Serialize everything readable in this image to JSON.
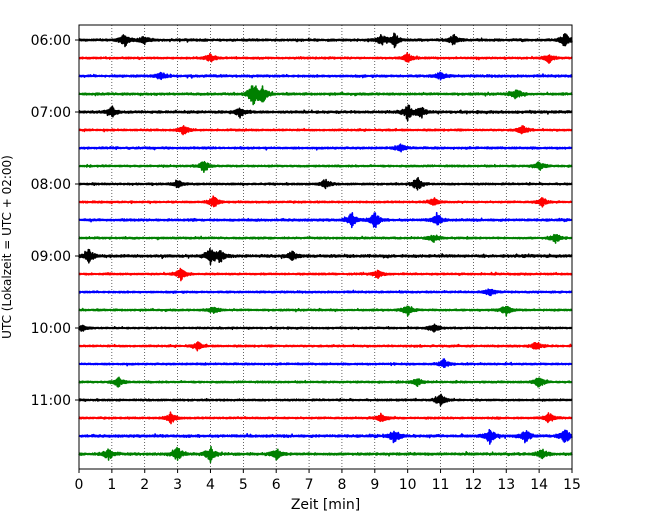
{
  "chart_data": {
    "type": "line",
    "title": "",
    "xlabel": "Zeit  [min]",
    "ylabel": "UTC (Lokalzeit = UTC + 02:00)",
    "xlim": [
      0,
      15
    ],
    "x_ticks": [
      "0",
      "1",
      "2",
      "3",
      "4",
      "5",
      "6",
      "7",
      "8",
      "9",
      "10",
      "11",
      "12",
      "13",
      "14",
      "15"
    ],
    "y_ticks": [
      "06:00",
      "07:00",
      "08:00",
      "09:00",
      "10:00",
      "11:00"
    ],
    "trace_interval_min": 15,
    "start_time": "06:00",
    "grid": "vertical dotted",
    "legend": "none",
    "colors": [
      "#000000",
      "#ff0000",
      "#0000ff",
      "#008000"
    ],
    "series": [
      {
        "start": "06:00",
        "color": "#000000",
        "amplitude": 0.55,
        "events": [
          {
            "t": 1.4,
            "a": 1.2
          },
          {
            "t": 2.0,
            "a": 0.8
          },
          {
            "t": 9.2,
            "a": 1.0
          },
          {
            "t": 9.6,
            "a": 1.3
          },
          {
            "t": 11.4,
            "a": 1.0
          },
          {
            "t": 14.8,
            "a": 1.4
          }
        ]
      },
      {
        "start": "06:15",
        "color": "#ff0000",
        "amplitude": 0.45,
        "events": [
          {
            "t": 4.0,
            "a": 0.8
          },
          {
            "t": 10.0,
            "a": 0.9
          },
          {
            "t": 14.3,
            "a": 0.9
          }
        ]
      },
      {
        "start": "06:30",
        "color": "#0000ff",
        "amplitude": 0.55,
        "events": [
          {
            "t": 2.5,
            "a": 0.7
          },
          {
            "t": 11.0,
            "a": 0.8
          }
        ]
      },
      {
        "start": "06:45",
        "color": "#008000",
        "amplitude": 0.55,
        "events": [
          {
            "t": 5.3,
            "a": 2.2
          },
          {
            "t": 5.6,
            "a": 1.6
          },
          {
            "t": 13.3,
            "a": 1.0
          }
        ]
      },
      {
        "start": "07:00",
        "color": "#000000",
        "amplitude": 0.6,
        "events": [
          {
            "t": 1.0,
            "a": 1.0
          },
          {
            "t": 4.9,
            "a": 1.0
          },
          {
            "t": 10.0,
            "a": 1.4
          },
          {
            "t": 10.4,
            "a": 1.0
          }
        ]
      },
      {
        "start": "07:15",
        "color": "#ff0000",
        "amplitude": 0.45,
        "events": [
          {
            "t": 3.2,
            "a": 1.0
          },
          {
            "t": 13.5,
            "a": 0.9
          }
        ]
      },
      {
        "start": "07:30",
        "color": "#0000ff",
        "amplitude": 0.5,
        "events": [
          {
            "t": 9.8,
            "a": 0.8
          }
        ]
      },
      {
        "start": "07:45",
        "color": "#008000",
        "amplitude": 0.45,
        "events": [
          {
            "t": 3.8,
            "a": 1.1
          },
          {
            "t": 14.0,
            "a": 0.9
          }
        ]
      },
      {
        "start": "08:00",
        "color": "#000000",
        "amplitude": 0.45,
        "events": [
          {
            "t": 3.0,
            "a": 0.8
          },
          {
            "t": 7.5,
            "a": 0.9
          },
          {
            "t": 10.3,
            "a": 1.3
          }
        ]
      },
      {
        "start": "08:15",
        "color": "#ff0000",
        "amplitude": 0.45,
        "events": [
          {
            "t": 4.1,
            "a": 1.2
          },
          {
            "t": 10.8,
            "a": 0.8
          },
          {
            "t": 14.1,
            "a": 0.8
          }
        ]
      },
      {
        "start": "08:30",
        "color": "#0000ff",
        "amplitude": 0.55,
        "events": [
          {
            "t": 8.3,
            "a": 1.3
          },
          {
            "t": 9.0,
            "a": 1.5
          },
          {
            "t": 10.9,
            "a": 1.1
          }
        ]
      },
      {
        "start": "08:45",
        "color": "#008000",
        "amplitude": 0.45,
        "events": [
          {
            "t": 10.8,
            "a": 0.8
          },
          {
            "t": 14.5,
            "a": 1.0
          }
        ]
      },
      {
        "start": "09:00",
        "color": "#000000",
        "amplitude": 0.65,
        "events": [
          {
            "t": 0.3,
            "a": 1.3
          },
          {
            "t": 4.0,
            "a": 1.4
          },
          {
            "t": 4.3,
            "a": 1.1
          },
          {
            "t": 6.5,
            "a": 0.9
          }
        ]
      },
      {
        "start": "09:15",
        "color": "#ff0000",
        "amplitude": 0.45,
        "events": [
          {
            "t": 3.1,
            "a": 1.1
          },
          {
            "t": 9.1,
            "a": 0.8
          }
        ]
      },
      {
        "start": "09:30",
        "color": "#0000ff",
        "amplitude": 0.45,
        "events": [
          {
            "t": 12.5,
            "a": 0.8
          }
        ]
      },
      {
        "start": "09:45",
        "color": "#008000",
        "amplitude": 0.45,
        "events": [
          {
            "t": 4.1,
            "a": 0.8
          },
          {
            "t": 10.0,
            "a": 1.0
          },
          {
            "t": 13.0,
            "a": 1.1
          }
        ]
      },
      {
        "start": "10:00",
        "color": "#000000",
        "amplitude": 0.4,
        "events": [
          {
            "t": 0.1,
            "a": 0.8
          },
          {
            "t": 10.8,
            "a": 1.0
          }
        ]
      },
      {
        "start": "10:15",
        "color": "#ff0000",
        "amplitude": 0.45,
        "events": [
          {
            "t": 3.6,
            "a": 0.8
          },
          {
            "t": 13.9,
            "a": 1.0
          }
        ]
      },
      {
        "start": "10:30",
        "color": "#0000ff",
        "amplitude": 0.45,
        "events": [
          {
            "t": 11.1,
            "a": 0.9
          }
        ]
      },
      {
        "start": "10:45",
        "color": "#008000",
        "amplitude": 0.45,
        "events": [
          {
            "t": 1.2,
            "a": 1.0
          },
          {
            "t": 10.3,
            "a": 0.8
          },
          {
            "t": 14.0,
            "a": 1.1
          }
        ]
      },
      {
        "start": "11:00",
        "color": "#000000",
        "amplitude": 0.45,
        "events": [
          {
            "t": 11.0,
            "a": 1.3
          }
        ]
      },
      {
        "start": "11:15",
        "color": "#ff0000",
        "amplitude": 0.45,
        "events": [
          {
            "t": 2.8,
            "a": 1.1
          },
          {
            "t": 9.2,
            "a": 1.0
          },
          {
            "t": 14.3,
            "a": 1.0
          }
        ]
      },
      {
        "start": "11:30",
        "color": "#0000ff",
        "amplitude": 0.6,
        "events": [
          {
            "t": 9.6,
            "a": 1.3
          },
          {
            "t": 12.5,
            "a": 1.4
          },
          {
            "t": 13.6,
            "a": 1.3
          },
          {
            "t": 14.8,
            "a": 1.4
          }
        ]
      },
      {
        "start": "11:45",
        "color": "#008000",
        "amplitude": 0.6,
        "events": [
          {
            "t": 0.9,
            "a": 1.2
          },
          {
            "t": 3.0,
            "a": 1.3
          },
          {
            "t": 4.0,
            "a": 1.4
          },
          {
            "t": 6.0,
            "a": 1.0
          },
          {
            "t": 14.1,
            "a": 0.9
          }
        ]
      }
    ]
  }
}
